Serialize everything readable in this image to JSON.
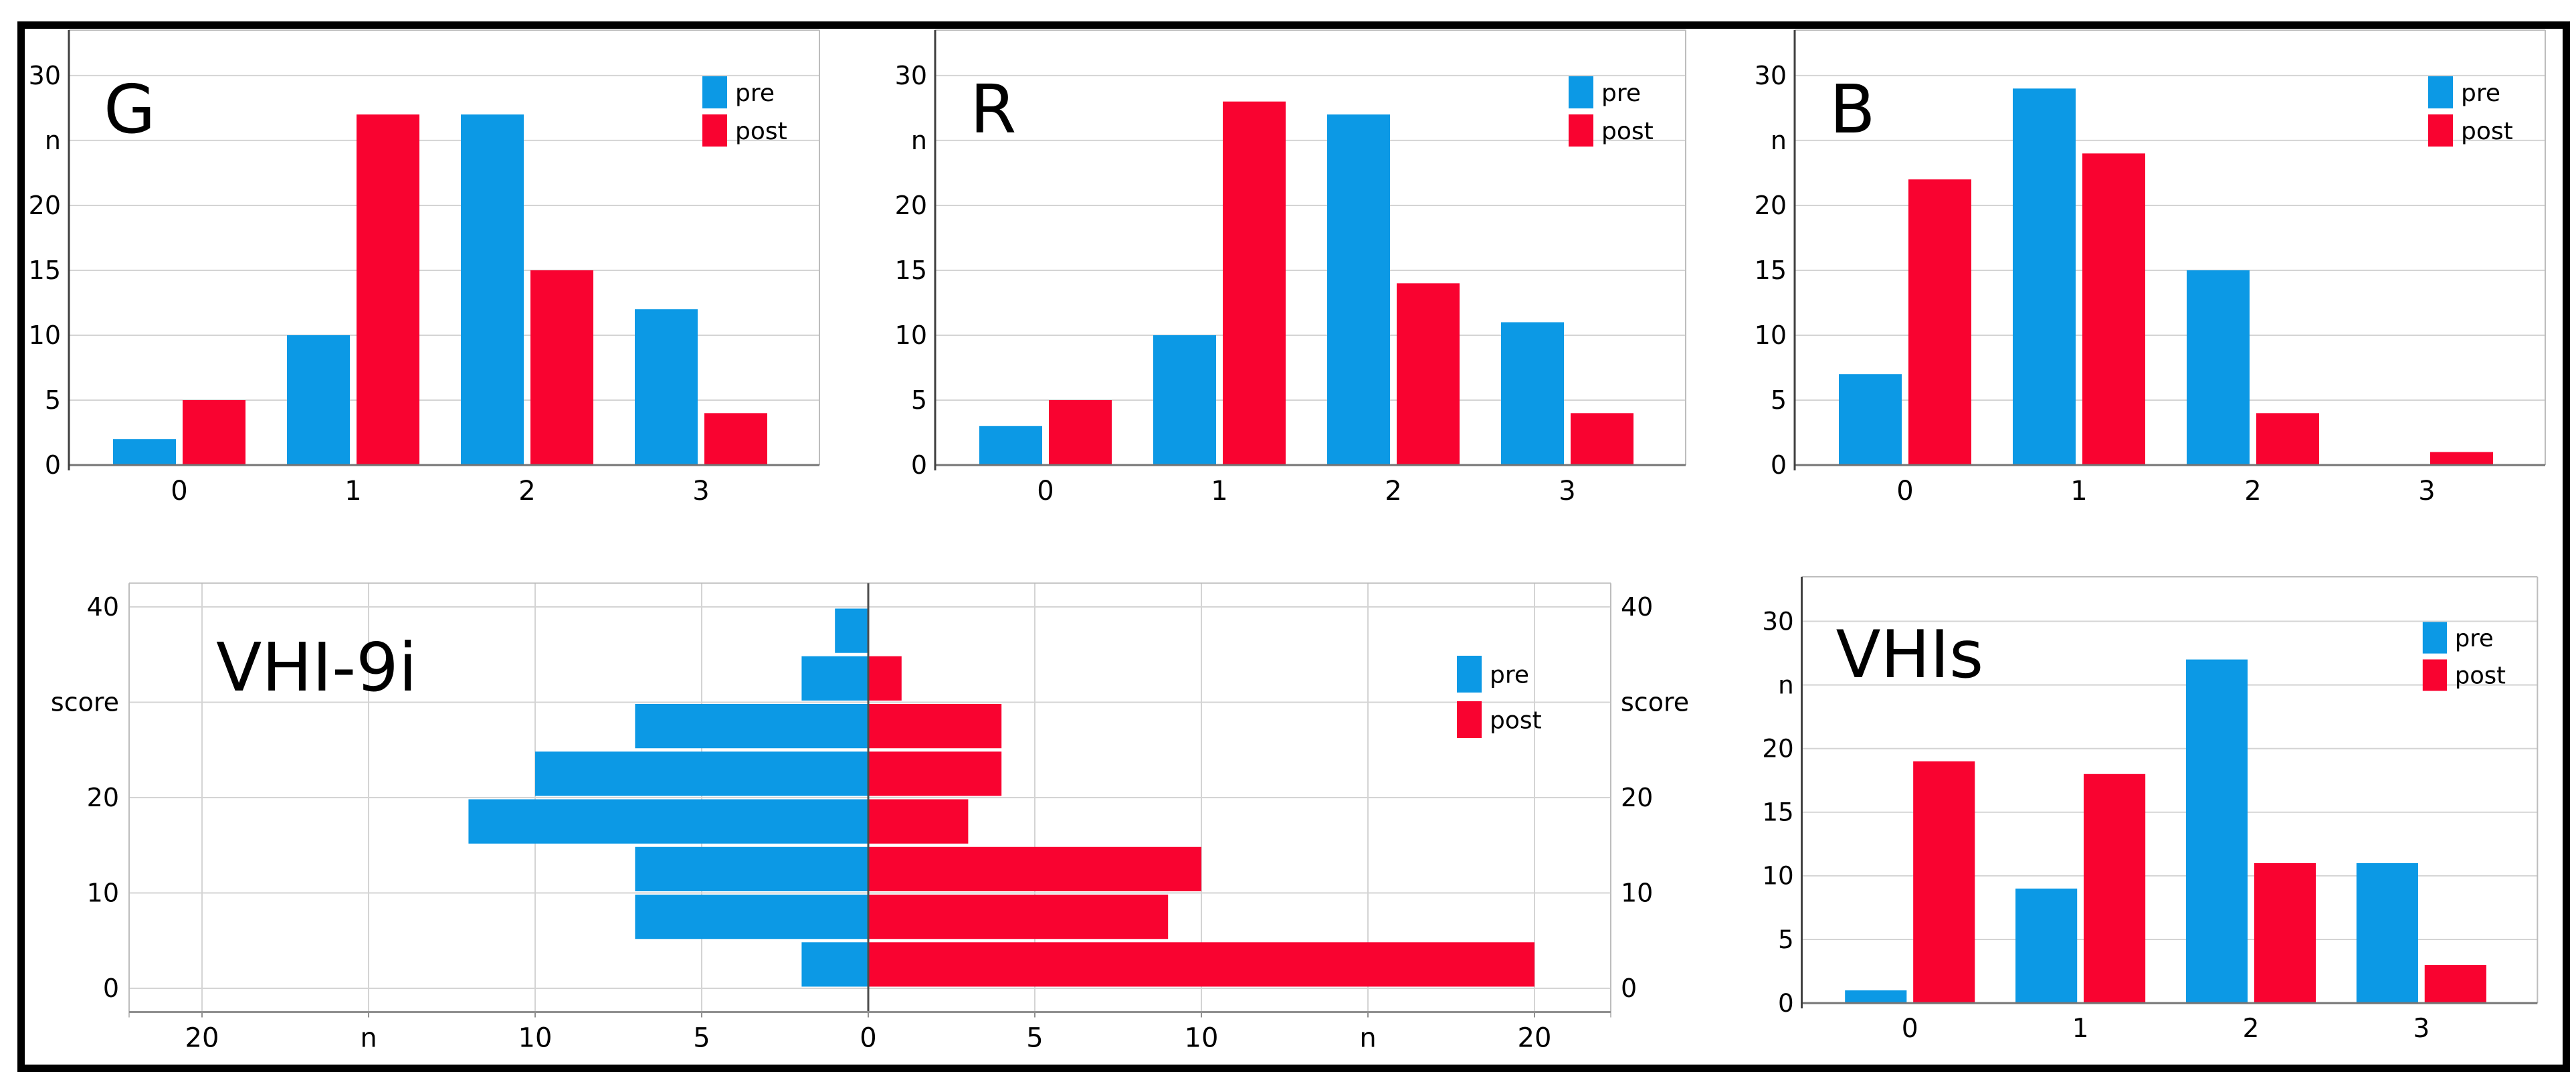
{
  "figure": {
    "background": "#ffffff",
    "border_color": "#000000"
  },
  "colors": {
    "pre": "#0c99e5",
    "post": "#f90330",
    "grid": "#d4d4d4",
    "frame": "#bdbdbd",
    "axis": "#3f3f3f",
    "baseline": "#757575",
    "center_line": "#4d4d4d",
    "pyramid_bottom": "#909090",
    "text": "#000000"
  },
  "legend": {
    "pre_label": "pre",
    "post_label": "post"
  },
  "chart_data": [
    {
      "id": "G",
      "type": "bar",
      "title": "G",
      "categories": [
        "0",
        "1",
        "2",
        "3"
      ],
      "series": [
        {
          "name": "pre",
          "values": [
            2,
            10,
            27,
            12
          ]
        },
        {
          "name": "post",
          "values": [
            5,
            27,
            15,
            4
          ]
        }
      ],
      "y_ticks": [
        {
          "value": 0,
          "label": "0"
        },
        {
          "value": 5,
          "label": "5"
        },
        {
          "value": 10,
          "label": "10"
        },
        {
          "value": 15,
          "label": "15"
        },
        {
          "value": 20,
          "label": "20"
        },
        {
          "value": 25,
          "label": "n"
        },
        {
          "value": 30,
          "label": "30"
        }
      ],
      "ylim": [
        0,
        33.5
      ],
      "legend_entries": [
        "pre",
        "post"
      ],
      "legend_position": "top-right",
      "grid": "horizontal"
    },
    {
      "id": "R",
      "type": "bar",
      "title": "R",
      "categories": [
        "0",
        "1",
        "2",
        "3"
      ],
      "series": [
        {
          "name": "pre",
          "values": [
            3,
            10,
            27,
            11
          ]
        },
        {
          "name": "post",
          "values": [
            5,
            28,
            14,
            4
          ]
        }
      ],
      "y_ticks": [
        {
          "value": 0,
          "label": "0"
        },
        {
          "value": 5,
          "label": "5"
        },
        {
          "value": 10,
          "label": "10"
        },
        {
          "value": 15,
          "label": "15"
        },
        {
          "value": 20,
          "label": "20"
        },
        {
          "value": 25,
          "label": "n"
        },
        {
          "value": 30,
          "label": "30"
        }
      ],
      "ylim": [
        0,
        33.5
      ],
      "legend_entries": [
        "pre",
        "post"
      ],
      "legend_position": "top-right",
      "grid": "horizontal"
    },
    {
      "id": "B",
      "type": "bar",
      "title": "B",
      "categories": [
        "0",
        "1",
        "2",
        "3"
      ],
      "series": [
        {
          "name": "pre",
          "values": [
            7,
            29,
            15,
            0
          ]
        },
        {
          "name": "post",
          "values": [
            22,
            24,
            4,
            1
          ]
        }
      ],
      "y_ticks": [
        {
          "value": 0,
          "label": "0"
        },
        {
          "value": 5,
          "label": "5"
        },
        {
          "value": 10,
          "label": "10"
        },
        {
          "value": 15,
          "label": "15"
        },
        {
          "value": 20,
          "label": "20"
        },
        {
          "value": 25,
          "label": "n"
        },
        {
          "value": 30,
          "label": "30"
        }
      ],
      "ylim": [
        0,
        33.5
      ],
      "legend_entries": [
        "pre",
        "post"
      ],
      "legend_position": "top-right",
      "grid": "horizontal"
    },
    {
      "id": "VHI-9i",
      "type": "pyramid",
      "title": "VHI-9i",
      "ylabel": "score",
      "xlabel": "n",
      "bins": [
        {
          "score_min": 0,
          "score_max": 5,
          "pre": 2,
          "post": 20
        },
        {
          "score_min": 5,
          "score_max": 10,
          "pre": 7,
          "post": 9
        },
        {
          "score_min": 10,
          "score_max": 15,
          "pre": 7,
          "post": 10
        },
        {
          "score_min": 15,
          "score_max": 20,
          "pre": 12,
          "post": 3
        },
        {
          "score_min": 20,
          "score_max": 25,
          "pre": 10,
          "post": 4
        },
        {
          "score_min": 25,
          "score_max": 30,
          "pre": 7,
          "post": 4
        },
        {
          "score_min": 30,
          "score_max": 35,
          "pre": 2,
          "post": 1
        },
        {
          "score_min": 35,
          "score_max": 40,
          "pre": 1,
          "post": 0
        }
      ],
      "x_ticks": [
        {
          "value": -20,
          "label": "20"
        },
        {
          "value": -15,
          "label": "n"
        },
        {
          "value": -10,
          "label": "10"
        },
        {
          "value": -5,
          "label": "5"
        },
        {
          "value": 0,
          "label": "0"
        },
        {
          "value": 5,
          "label": "5"
        },
        {
          "value": 10,
          "label": "10"
        },
        {
          "value": 15,
          "label": "n"
        },
        {
          "value": 20,
          "label": "20"
        }
      ],
      "y_ticks": [
        {
          "value": 0,
          "label": "0"
        },
        {
          "value": 10,
          "label": "10"
        },
        {
          "value": 20,
          "label": "20"
        },
        {
          "value": 30,
          "label": "score"
        },
        {
          "value": 40,
          "label": "40"
        }
      ],
      "xlim": [
        -22.3,
        22.3
      ],
      "ylim": [
        -2.5,
        42.5
      ],
      "legend_entries": [
        "pre",
        "post"
      ],
      "legend_position": "top-right",
      "grid": "both"
    },
    {
      "id": "VHIs",
      "type": "bar",
      "title": "VHIs",
      "categories": [
        "0",
        "1",
        "2",
        "3"
      ],
      "series": [
        {
          "name": "pre",
          "values": [
            1,
            9,
            27,
            11
          ]
        },
        {
          "name": "post",
          "values": [
            19,
            18,
            11,
            3
          ]
        }
      ],
      "y_ticks": [
        {
          "value": 0,
          "label": "0"
        },
        {
          "value": 5,
          "label": "5"
        },
        {
          "value": 10,
          "label": "10"
        },
        {
          "value": 15,
          "label": "15"
        },
        {
          "value": 20,
          "label": "20"
        },
        {
          "value": 25,
          "label": "n"
        },
        {
          "value": 30,
          "label": "30"
        }
      ],
      "ylim": [
        0,
        33.5
      ],
      "legend_entries": [
        "pre",
        "post"
      ],
      "legend_position": "top-right",
      "grid": "horizontal"
    }
  ]
}
